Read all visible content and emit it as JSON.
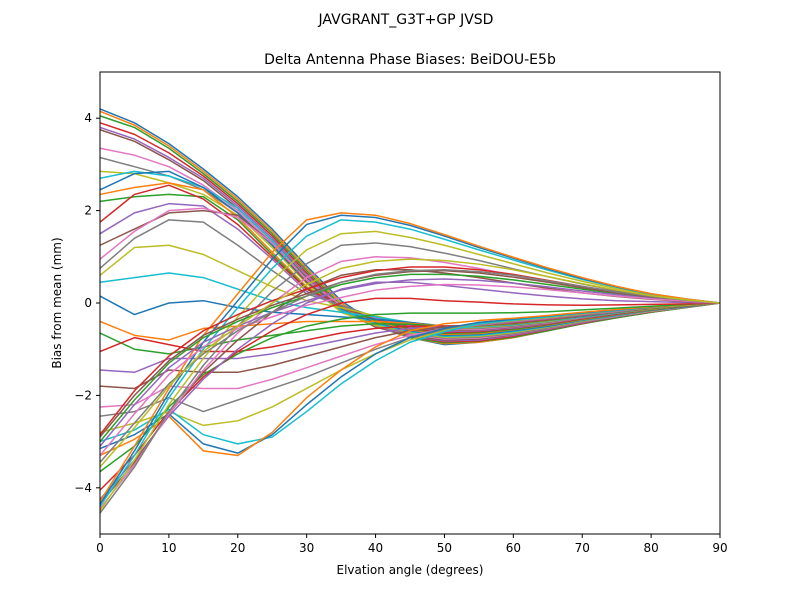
{
  "figure": {
    "suptitle": "JAVGRANT_G3T+GP JVSD"
  },
  "chart_data": {
    "type": "line",
    "title": "Delta Antenna Phase Biases: BeiDOU-E5b",
    "xlabel": "Elvation angle (degrees)",
    "ylabel": "Bias from mean (mm)",
    "xlim": [
      0,
      90
    ],
    "ylim": [
      -5,
      5
    ],
    "xticks": [
      0,
      10,
      20,
      30,
      40,
      50,
      60,
      70,
      80,
      90
    ],
    "yticks": [
      -4,
      -2,
      0,
      2,
      4
    ],
    "grid": false,
    "legend": "none",
    "colors": [
      "#1f77b4",
      "#ff7f0e",
      "#2ca02c",
      "#d62728",
      "#9467bd",
      "#8c564b",
      "#e377c2",
      "#7f7f7f",
      "#bcbd22",
      "#17becf"
    ],
    "x": [
      0,
      5,
      10,
      15,
      20,
      25,
      30,
      35,
      40,
      45,
      50,
      55,
      60,
      65,
      70,
      75,
      80,
      85,
      90
    ],
    "series": [
      {
        "values": [
          4.2,
          3.9,
          3.45,
          2.9,
          2.3,
          1.6,
          0.8,
          0.05,
          -0.45,
          -0.75,
          -0.9,
          -0.85,
          -0.75,
          -0.6,
          -0.45,
          -0.32,
          -0.2,
          -0.1,
          0
        ]
      },
      {
        "values": [
          4.15,
          3.85,
          3.4,
          2.85,
          2.25,
          1.55,
          0.75,
          0.0,
          -0.45,
          -0.75,
          -0.88,
          -0.85,
          -0.75,
          -0.6,
          -0.45,
          -0.32,
          -0.2,
          -0.1,
          0
        ]
      },
      {
        "values": [
          4.05,
          3.8,
          3.35,
          2.8,
          2.2,
          1.5,
          0.7,
          -0.05,
          -0.5,
          -0.75,
          -0.86,
          -0.83,
          -0.74,
          -0.6,
          -0.45,
          -0.32,
          -0.2,
          -0.1,
          0
        ]
      },
      {
        "values": [
          3.9,
          3.65,
          3.25,
          2.75,
          2.15,
          1.45,
          0.65,
          -0.1,
          -0.5,
          -0.72,
          -0.84,
          -0.82,
          -0.72,
          -0.58,
          -0.44,
          -0.3,
          -0.19,
          -0.09,
          0
        ]
      },
      {
        "values": [
          3.8,
          3.55,
          3.15,
          2.7,
          2.1,
          1.4,
          0.6,
          -0.12,
          -0.52,
          -0.72,
          -0.82,
          -0.8,
          -0.7,
          -0.57,
          -0.43,
          -0.3,
          -0.18,
          -0.09,
          0
        ]
      },
      {
        "values": [
          3.75,
          3.5,
          3.1,
          2.65,
          2.05,
          1.35,
          0.55,
          -0.15,
          -0.52,
          -0.7,
          -0.8,
          -0.78,
          -0.68,
          -0.56,
          -0.42,
          -0.3,
          -0.18,
          -0.09,
          0
        ]
      },
      {
        "values": [
          3.35,
          3.2,
          2.95,
          2.55,
          2.0,
          1.3,
          0.5,
          -0.15,
          -0.5,
          -0.68,
          -0.78,
          -0.76,
          -0.67,
          -0.55,
          -0.41,
          -0.29,
          -0.18,
          -0.09,
          0
        ]
      },
      {
        "values": [
          3.15,
          2.95,
          2.75,
          2.45,
          1.95,
          1.25,
          0.45,
          -0.18,
          -0.5,
          -0.66,
          -0.76,
          -0.74,
          -0.66,
          -0.54,
          -0.4,
          -0.28,
          -0.17,
          -0.08,
          0
        ]
      },
      {
        "values": [
          2.85,
          2.8,
          2.6,
          2.35,
          1.9,
          1.2,
          0.42,
          -0.2,
          -0.48,
          -0.64,
          -0.74,
          -0.72,
          -0.64,
          -0.52,
          -0.39,
          -0.27,
          -0.17,
          -0.08,
          0
        ]
      },
      {
        "values": [
          2.7,
          2.85,
          2.75,
          2.5,
          2.05,
          1.35,
          0.5,
          -0.15,
          -0.45,
          -0.62,
          -0.72,
          -0.7,
          -0.62,
          -0.51,
          -0.38,
          -0.27,
          -0.16,
          -0.08,
          0
        ]
      },
      {
        "values": [
          2.45,
          2.8,
          2.85,
          2.5,
          1.95,
          1.25,
          0.45,
          -0.12,
          -0.42,
          -0.6,
          -0.7,
          -0.68,
          -0.6,
          -0.5,
          -0.37,
          -0.26,
          -0.16,
          -0.08,
          0
        ]
      },
      {
        "values": [
          2.35,
          2.5,
          2.6,
          2.45,
          1.85,
          1.1,
          0.35,
          -0.1,
          -0.4,
          -0.58,
          -0.68,
          -0.66,
          -0.58,
          -0.48,
          -0.36,
          -0.25,
          -0.15,
          -0.07,
          0
        ]
      },
      {
        "values": [
          2.2,
          2.3,
          2.35,
          2.3,
          1.8,
          1.05,
          0.32,
          -0.08,
          -0.38,
          -0.56,
          -0.66,
          -0.64,
          -0.57,
          -0.47,
          -0.35,
          -0.24,
          -0.15,
          -0.07,
          0
        ]
      },
      {
        "values": [
          1.75,
          2.35,
          2.55,
          2.25,
          1.7,
          1.0,
          0.3,
          -0.05,
          -0.35,
          -0.54,
          -0.64,
          -0.62,
          -0.55,
          -0.46,
          -0.34,
          -0.24,
          -0.14,
          -0.07,
          0
        ]
      },
      {
        "values": [
          1.5,
          1.95,
          2.15,
          2.1,
          1.6,
          0.95,
          0.25,
          -0.05,
          -0.33,
          -0.52,
          -0.62,
          -0.6,
          -0.54,
          -0.45,
          -0.33,
          -0.23,
          -0.14,
          -0.07,
          0
        ]
      },
      {
        "values": [
          1.25,
          1.6,
          1.95,
          2.0,
          1.9,
          1.3,
          0.45,
          -0.1,
          -0.35,
          -0.5,
          -0.6,
          -0.58,
          -0.52,
          -0.44,
          -0.33,
          -0.23,
          -0.14,
          -0.07,
          0
        ]
      },
      {
        "values": [
          0.95,
          1.55,
          2.0,
          2.05,
          1.85,
          1.3,
          0.5,
          -0.05,
          -0.32,
          -0.48,
          -0.58,
          -0.57,
          -0.51,
          -0.43,
          -0.32,
          -0.22,
          -0.13,
          -0.06,
          0
        ]
      },
      {
        "values": [
          0.75,
          1.4,
          1.8,
          1.75,
          1.25,
          0.7,
          0.2,
          -0.05,
          -0.3,
          -0.46,
          -0.56,
          -0.55,
          -0.5,
          -0.42,
          -0.31,
          -0.22,
          -0.13,
          -0.06,
          0
        ]
      },
      {
        "values": [
          0.6,
          1.2,
          1.25,
          1.05,
          0.7,
          0.35,
          0.05,
          -0.1,
          -0.28,
          -0.44,
          -0.54,
          -0.53,
          -0.48,
          -0.4,
          -0.3,
          -0.21,
          -0.13,
          -0.06,
          0
        ]
      },
      {
        "values": [
          0.45,
          0.55,
          0.65,
          0.55,
          0.3,
          0.05,
          -0.1,
          -0.2,
          -0.3,
          -0.42,
          -0.52,
          -0.52,
          -0.47,
          -0.39,
          -0.3,
          -0.21,
          -0.12,
          -0.06,
          0
        ]
      },
      {
        "values": [
          0.15,
          -0.25,
          0.0,
          0.05,
          -0.1,
          -0.2,
          -0.25,
          -0.3,
          -0.35,
          -0.42,
          -0.5,
          -0.5,
          -0.46,
          -0.38,
          -0.29,
          -0.2,
          -0.12,
          -0.06,
          0
        ]
      },
      {
        "values": [
          -0.4,
          -0.7,
          -0.8,
          -0.55,
          -0.5,
          -0.45,
          -0.4,
          -0.4,
          -0.4,
          -0.44,
          -0.5,
          -0.5,
          -0.45,
          -0.38,
          -0.28,
          -0.2,
          -0.12,
          -0.06,
          0
        ]
      },
      {
        "values": [
          -0.65,
          -1.0,
          -1.1,
          -0.95,
          -0.8,
          -0.7,
          -0.6,
          -0.5,
          -0.45,
          -0.46,
          -0.5,
          -0.49,
          -0.44,
          -0.37,
          -0.28,
          -0.2,
          -0.12,
          -0.06,
          0
        ]
      },
      {
        "values": [
          -1.05,
          -0.75,
          -0.9,
          -1.05,
          -1.05,
          -0.95,
          -0.8,
          -0.65,
          -0.55,
          -0.5,
          -0.5,
          -0.48,
          -0.43,
          -0.36,
          -0.27,
          -0.19,
          -0.11,
          -0.05,
          0
        ]
      },
      {
        "values": [
          -1.45,
          -1.5,
          -1.2,
          -1.2,
          -1.2,
          -1.1,
          -0.95,
          -0.8,
          -0.65,
          -0.55,
          -0.52,
          -0.48,
          -0.42,
          -0.35,
          -0.27,
          -0.19,
          -0.11,
          -0.05,
          0
        ]
      },
      {
        "values": [
          -1.8,
          -1.85,
          -1.45,
          -1.5,
          -1.5,
          -1.35,
          -1.15,
          -0.95,
          -0.75,
          -0.6,
          -0.52,
          -0.47,
          -0.41,
          -0.34,
          -0.26,
          -0.18,
          -0.11,
          -0.05,
          0
        ]
      },
      {
        "values": [
          -2.25,
          -2.2,
          -1.8,
          -1.85,
          -1.85,
          -1.65,
          -1.4,
          -1.15,
          -0.9,
          -0.7,
          -0.56,
          -0.47,
          -0.4,
          -0.33,
          -0.25,
          -0.18,
          -0.1,
          -0.05,
          0
        ]
      },
      {
        "values": [
          -2.45,
          -2.35,
          -2.05,
          -2.35,
          -2.1,
          -1.85,
          -1.6,
          -1.3,
          -1.0,
          -0.75,
          -0.58,
          -0.46,
          -0.39,
          -0.32,
          -0.24,
          -0.17,
          -0.1,
          -0.05,
          0
        ]
      },
      {
        "values": [
          -2.8,
          -2.6,
          -2.35,
          -2.65,
          -2.55,
          -2.25,
          -1.85,
          -1.45,
          -1.1,
          -0.8,
          -0.6,
          -0.45,
          -0.38,
          -0.31,
          -0.23,
          -0.16,
          -0.1,
          -0.05,
          0
        ]
      },
      {
        "values": [
          -3.0,
          -2.75,
          -2.3,
          -2.85,
          -3.05,
          -2.9,
          -2.35,
          -1.75,
          -1.25,
          -0.85,
          -0.62,
          -0.45,
          -0.37,
          -0.3,
          -0.22,
          -0.16,
          -0.09,
          -0.04,
          0
        ]
      },
      {
        "values": [
          -3.15,
          -2.85,
          -2.4,
          -3.05,
          -3.25,
          -2.85,
          -2.2,
          -1.6,
          -1.1,
          -0.75,
          -0.55,
          -0.42,
          -0.35,
          -0.28,
          -0.21,
          -0.15,
          -0.09,
          -0.04,
          0
        ]
      },
      {
        "values": [
          -3.3,
          -2.95,
          -2.45,
          -3.2,
          -3.3,
          -2.8,
          -2.05,
          -1.45,
          -0.95,
          -0.6,
          -0.45,
          -0.38,
          -0.33,
          -0.27,
          -0.2,
          -0.14,
          -0.08,
          -0.04,
          0
        ]
      },
      {
        "values": [
          -3.65,
          -3.1,
          -2.25,
          -1.55,
          -1.1,
          -0.75,
          -0.5,
          -0.35,
          -0.25,
          -0.22,
          -0.22,
          -0.22,
          -0.21,
          -0.19,
          -0.15,
          -0.11,
          -0.07,
          -0.03,
          0
        ]
      },
      {
        "values": [
          -4.05,
          -3.3,
          -2.35,
          -1.6,
          -1.05,
          -0.6,
          -0.25,
          0.0,
          0.1,
          0.1,
          0.05,
          0.02,
          -0.02,
          -0.04,
          -0.05,
          -0.04,
          -0.03,
          -0.02,
          0
        ]
      },
      {
        "values": [
          -4.25,
          -3.4,
          -2.45,
          -1.65,
          -1.0,
          -0.45,
          0.0,
          0.3,
          0.45,
          0.45,
          0.38,
          0.3,
          0.22,
          0.15,
          0.09,
          0.05,
          0.03,
          0.01,
          0
        ]
      },
      {
        "values": [
          -4.35,
          -3.45,
          -2.4,
          -1.5,
          -0.8,
          -0.2,
          0.3,
          0.6,
          0.72,
          0.72,
          0.65,
          0.55,
          0.43,
          0.32,
          0.22,
          0.14,
          0.08,
          0.03,
          0
        ]
      },
      {
        "values": [
          -4.45,
          -3.5,
          -2.4,
          -1.45,
          -0.65,
          0.0,
          0.55,
          0.9,
          1.0,
          0.98,
          0.88,
          0.75,
          0.6,
          0.46,
          0.33,
          0.21,
          0.12,
          0.05,
          0
        ]
      },
      {
        "values": [
          -4.55,
          -3.55,
          -2.35,
          -1.35,
          -0.5,
          0.25,
          0.85,
          1.25,
          1.3,
          1.22,
          1.08,
          0.92,
          0.74,
          0.57,
          0.41,
          0.27,
          0.15,
          0.07,
          0
        ]
      },
      {
        "values": [
          -4.5,
          -3.4,
          -2.2,
          -1.2,
          -0.3,
          0.5,
          1.15,
          1.5,
          1.55,
          1.42,
          1.25,
          1.05,
          0.85,
          0.65,
          0.47,
          0.31,
          0.18,
          0.08,
          0
        ]
      },
      {
        "values": [
          -4.4,
          -3.3,
          -2.05,
          -1.0,
          -0.1,
          0.75,
          1.45,
          1.8,
          1.75,
          1.6,
          1.38,
          1.15,
          0.93,
          0.71,
          0.51,
          0.34,
          0.19,
          0.08,
          0
        ]
      },
      {
        "values": [
          -4.35,
          -3.2,
          -1.95,
          -0.85,
          0.05,
          0.95,
          1.7,
          1.9,
          1.85,
          1.68,
          1.45,
          1.2,
          0.97,
          0.74,
          0.53,
          0.35,
          0.2,
          0.09,
          0
        ]
      },
      {
        "values": [
          -4.3,
          -3.1,
          -1.85,
          -0.7,
          0.2,
          1.1,
          1.8,
          1.95,
          1.9,
          1.72,
          1.48,
          1.23,
          0.99,
          0.76,
          0.55,
          0.36,
          0.2,
          0.09,
          0
        ]
      },
      {
        "values": [
          -3.0,
          -2.1,
          -1.3,
          -0.75,
          -0.4,
          -0.1,
          0.15,
          0.4,
          0.55,
          0.62,
          0.62,
          0.58,
          0.5,
          0.4,
          0.3,
          0.2,
          0.12,
          0.05,
          0
        ]
      },
      {
        "values": [
          -2.85,
          -1.9,
          -1.15,
          -0.6,
          -0.25,
          0.05,
          0.3,
          0.55,
          0.7,
          0.78,
          0.78,
          0.72,
          0.62,
          0.49,
          0.36,
          0.24,
          0.14,
          0.06,
          0
        ]
      },
      {
        "values": [
          -3.1,
          -2.2,
          -1.4,
          -0.85,
          -0.5,
          -0.2,
          0.05,
          0.28,
          0.42,
          0.5,
          0.52,
          0.49,
          0.43,
          0.35,
          0.26,
          0.18,
          0.1,
          0.05,
          0
        ]
      },
      {
        "values": [
          -2.9,
          -2.0,
          -1.25,
          -0.7,
          -0.35,
          -0.05,
          0.2,
          0.45,
          0.6,
          0.68,
          0.7,
          0.65,
          0.56,
          0.45,
          0.33,
          0.22,
          0.13,
          0.06,
          0
        ]
      },
      {
        "values": [
          -3.3,
          -2.4,
          -1.55,
          -0.95,
          -0.55,
          -0.3,
          -0.05,
          0.12,
          0.28,
          0.36,
          0.4,
          0.39,
          0.35,
          0.29,
          0.22,
          0.15,
          0.09,
          0.04,
          0
        ]
      },
      {
        "values": [
          -3.45,
          -2.6,
          -1.75,
          -1.1,
          -0.6,
          -0.2,
          0.15,
          0.45,
          0.62,
          0.7,
          0.72,
          0.68,
          0.6,
          0.48,
          0.36,
          0.24,
          0.14,
          0.06,
          0
        ]
      },
      {
        "values": [
          -3.55,
          -2.7,
          -1.8,
          -1.05,
          -0.5,
          0.0,
          0.4,
          0.75,
          0.9,
          0.95,
          0.92,
          0.84,
          0.72,
          0.57,
          0.42,
          0.28,
          0.16,
          0.07,
          0
        ]
      }
    ]
  }
}
